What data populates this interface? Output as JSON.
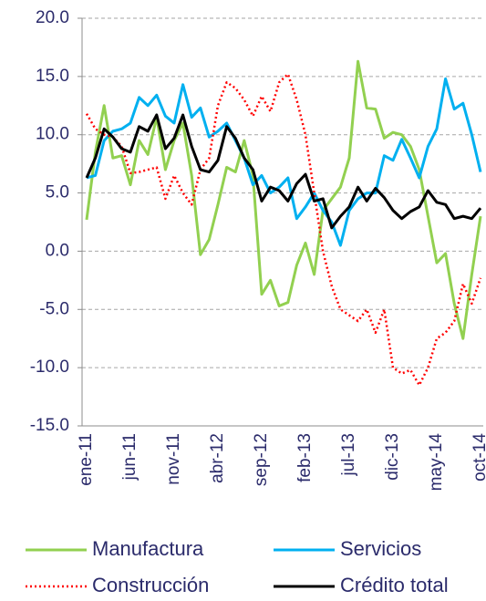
{
  "chart_data": {
    "type": "line",
    "categories": [
      "ene-11",
      null,
      null,
      null,
      null,
      "jun-11",
      null,
      null,
      null,
      null,
      "nov-11",
      null,
      null,
      null,
      null,
      "abr-12",
      null,
      null,
      null,
      null,
      "sep-12",
      null,
      null,
      null,
      null,
      "feb-13",
      null,
      null,
      null,
      null,
      "jul-13",
      null,
      null,
      null,
      null,
      "dic-13",
      null,
      null,
      null,
      null,
      "may-14",
      null,
      null,
      null,
      null,
      "oct-14"
    ],
    "series": [
      {
        "name": "Manufactura",
        "color": "#92d050",
        "style": "solid",
        "values": [
          2.7,
          8.5,
          12.5,
          8.0,
          8.2,
          5.7,
          9.5,
          8.3,
          11.5,
          7.0,
          9.5,
          11.0,
          6.5,
          -0.3,
          1.0,
          4.0,
          7.2,
          6.8,
          9.5,
          6.5,
          -3.7,
          -2.5,
          -4.7,
          -4.4,
          -1.2,
          0.7,
          -2.0,
          3.5,
          4.5,
          5.5,
          8.0,
          16.3,
          12.3,
          12.2,
          9.7,
          10.2,
          10.0,
          9.0,
          7.0,
          3.0,
          -1.0,
          -0.2,
          -4.5,
          -7.5,
          -2.0,
          3.0
        ]
      },
      {
        "name": "Servicios",
        "color": "#00b0f0",
        "style": "solid",
        "values": [
          6.3,
          6.5,
          9.5,
          10.3,
          10.5,
          11.0,
          13.2,
          12.5,
          13.4,
          11.6,
          11.0,
          14.3,
          11.5,
          12.3,
          9.8,
          10.3,
          11.0,
          9.5,
          8.0,
          5.7,
          6.5,
          5.0,
          5.5,
          6.3,
          2.8,
          3.8,
          5.0,
          3.5,
          2.5,
          0.5,
          3.5,
          4.5,
          5.0,
          5.0,
          8.2,
          7.8,
          9.6,
          8.0,
          6.3,
          9.0,
          10.5,
          14.8,
          12.2,
          12.7,
          10.0,
          6.8
        ]
      },
      {
        "name": "Construcción",
        "color": "#ff0000",
        "style": "dotted",
        "values": [
          11.8,
          10.5,
          10.0,
          9.8,
          9.0,
          6.7,
          6.8,
          7.0,
          7.2,
          4.5,
          6.5,
          5.0,
          4.0,
          7.0,
          8.0,
          12.5,
          14.5,
          14.0,
          13.0,
          11.6,
          13.3,
          12.0,
          14.5,
          15.2,
          13.0,
          10.0,
          5.0,
          0.0,
          -3.0,
          -5.0,
          -5.5,
          -6.0,
          -5.0,
          -7.0,
          -5.0,
          -10.0,
          -10.5,
          -10.2,
          -11.5,
          -10.0,
          -7.5,
          -7.0,
          -6.0,
          -2.8,
          -4.5,
          -2.3
        ]
      },
      {
        "name": "Crédito total",
        "color": "#000000",
        "style": "solid",
        "values": [
          6.3,
          8.0,
          10.5,
          9.8,
          8.8,
          8.5,
          10.7,
          10.3,
          11.7,
          8.8,
          9.7,
          11.7,
          9.0,
          7.0,
          6.8,
          7.8,
          10.7,
          9.7,
          8.0,
          7.0,
          4.3,
          5.5,
          5.2,
          4.3,
          5.8,
          6.6,
          4.3,
          4.5,
          2.0,
          3.0,
          3.8,
          5.5,
          4.3,
          5.4,
          4.6,
          3.5,
          2.8,
          3.4,
          3.8,
          5.2,
          4.2,
          4.0,
          2.8,
          3.0,
          2.8,
          3.7
        ]
      }
    ],
    "ylim": [
      -15,
      20
    ],
    "yticks": [
      {
        "value": -15,
        "label": "-15.0"
      },
      {
        "value": -10,
        "label": "-10.0"
      },
      {
        "value": -5,
        "label": "-5.0"
      },
      {
        "value": 0,
        "label": "0.0"
      },
      {
        "value": 5,
        "label": "5.0"
      },
      {
        "value": 10,
        "label": "10.0"
      },
      {
        "value": 15,
        "label": "15.0"
      },
      {
        "value": 20,
        "label": "20.0"
      }
    ],
    "grid": true
  }
}
